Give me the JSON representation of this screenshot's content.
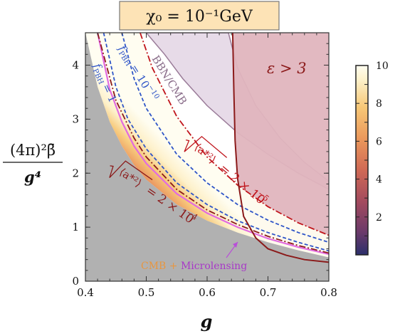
{
  "chart_data": {
    "type": "area",
    "title_text": "χ₀ = 10⁻¹GeV",
    "title": "",
    "xlabel": "g",
    "ylabel": "(4π)²β̄ / g⁴",
    "ylabel_num": "(4π)²β̄",
    "ylabel_den": "g⁴",
    "xlim": [
      0.4,
      0.8
    ],
    "ylim": [
      0,
      4.6
    ],
    "x_ticks": [
      0.4,
      0.5,
      0.6,
      0.7,
      0.8
    ],
    "x_tick_labels": [
      "0.4",
      "0.5",
      "0.6",
      "0.7",
      "0.8"
    ],
    "y_ticks": [
      0,
      1,
      2,
      3,
      4
    ],
    "y_tick_labels": [
      "0",
      "1",
      "2",
      "3",
      "4"
    ],
    "colorbar": {
      "range": [
        0,
        10
      ],
      "ticks": [
        2,
        4,
        6,
        8,
        10
      ],
      "tick_labels": [
        "2",
        "4",
        "6",
        "8",
        "10"
      ],
      "colormap": [
        "#2b2f6b",
        "#6b3a6a",
        "#a34a5e",
        "#d06a55",
        "#ec9a5c",
        "#f7c877",
        "#fdf0c8",
        "#fffdf0"
      ]
    },
    "regions": [
      {
        "id": "excluded-gray",
        "color": "#b1b1b1",
        "boundary": [
          [
            0.4,
            4.6
          ],
          [
            0.42,
            3.6
          ],
          [
            0.44,
            2.95
          ],
          [
            0.46,
            2.5
          ],
          [
            0.48,
            2.15
          ],
          [
            0.5,
            1.88
          ],
          [
            0.55,
            1.42
          ],
          [
            0.6,
            1.12
          ],
          [
            0.65,
            0.9
          ],
          [
            0.7,
            0.72
          ],
          [
            0.75,
            0.57
          ],
          [
            0.8,
            0.44
          ]
        ]
      },
      {
        "id": "bbn-cmb",
        "label": "BBN/CMB",
        "color": "#e7dbe8",
        "edge": "#9a7b98",
        "inner": [
          [
            0.5,
            4.6
          ],
          [
            0.53,
            4.2
          ],
          [
            0.56,
            3.75
          ],
          [
            0.6,
            3.25
          ],
          [
            0.65,
            2.75
          ],
          [
            0.7,
            2.35
          ],
          [
            0.75,
            2.0
          ],
          [
            0.8,
            1.7
          ]
        ],
        "outer": [
          [
            0.635,
            4.6
          ],
          [
            0.65,
            3.95
          ],
          [
            0.68,
            3.25
          ],
          [
            0.72,
            2.65
          ],
          [
            0.76,
            2.2
          ],
          [
            0.8,
            1.85
          ]
        ]
      },
      {
        "id": "epsilon",
        "label": "ε > 3",
        "color": "#e0b5be",
        "edge": "#8b1a1a",
        "boundary": [
          [
            0.642,
            4.6
          ],
          [
            0.644,
            3.5
          ],
          [
            0.646,
            2.6
          ],
          [
            0.65,
            1.9
          ],
          [
            0.66,
            1.2
          ],
          [
            0.68,
            0.8
          ],
          [
            0.7,
            0.6
          ],
          [
            0.73,
            0.48
          ],
          [
            0.76,
            0.4
          ],
          [
            0.8,
            0.35
          ]
        ]
      }
    ],
    "curves": [
      {
        "id": "cmb-microlensing",
        "label": "CMB + Microlensing",
        "color": "#e26ae0",
        "points": [
          [
            0.42,
            4.6
          ],
          [
            0.44,
            3.55
          ],
          [
            0.46,
            2.95
          ],
          [
            0.48,
            2.5
          ],
          [
            0.5,
            2.18
          ],
          [
            0.55,
            1.62
          ],
          [
            0.6,
            1.26
          ],
          [
            0.65,
            1.0
          ],
          [
            0.7,
            0.79
          ],
          [
            0.75,
            0.63
          ],
          [
            0.8,
            0.5
          ]
        ]
      },
      {
        "id": "fpbh-1",
        "label": "fPBH = 1",
        "color": "#2f55c8",
        "points": [
          [
            0.43,
            4.6
          ],
          [
            0.45,
            3.6
          ],
          [
            0.47,
            3.0
          ],
          [
            0.5,
            2.45
          ],
          [
            0.55,
            1.82
          ],
          [
            0.6,
            1.42
          ],
          [
            0.65,
            1.12
          ],
          [
            0.7,
            0.9
          ],
          [
            0.75,
            0.72
          ],
          [
            0.8,
            0.56
          ]
        ]
      },
      {
        "id": "fpbh-1e-10",
        "label": "fPBH = 10^-10",
        "color": "#2f55c8",
        "points": [
          [
            0.46,
            4.6
          ],
          [
            0.48,
            3.75
          ],
          [
            0.5,
            3.2
          ],
          [
            0.55,
            2.35
          ],
          [
            0.6,
            1.82
          ],
          [
            0.65,
            1.42
          ],
          [
            0.7,
            1.13
          ],
          [
            0.75,
            0.9
          ],
          [
            0.8,
            0.72
          ]
        ]
      },
      {
        "id": "a2-2e-4",
        "label": "√⟨a*²⟩ = 2 × 10^-4",
        "color": "#8b1a1a",
        "points": [
          [
            0.42,
            4.6
          ],
          [
            0.45,
            3.35
          ],
          [
            0.48,
            2.65
          ],
          [
            0.5,
            2.3
          ],
          [
            0.55,
            1.7
          ],
          [
            0.6,
            1.32
          ],
          [
            0.65,
            1.05
          ],
          [
            0.7,
            0.83
          ],
          [
            0.75,
            0.66
          ],
          [
            0.8,
            0.52
          ]
        ]
      },
      {
        "id": "a2-2e-5",
        "label": "√⟨a*²⟩ = 2 × 10^-5",
        "color": "#c0141b",
        "points": [
          [
            0.49,
            4.6
          ],
          [
            0.51,
            3.95
          ],
          [
            0.55,
            3.05
          ],
          [
            0.6,
            2.3
          ],
          [
            0.65,
            1.78
          ],
          [
            0.7,
            1.38
          ],
          [
            0.75,
            1.08
          ],
          [
            0.8,
            0.85
          ]
        ]
      }
    ],
    "annotations": {
      "bbn": "BBN/CMB",
      "epsilon": "ε > 3",
      "cmb_microlensing": "CMB + Microlensing",
      "fpbh_sym": "f",
      "fpbh_sub": "PBH",
      "fpbh1_val": "= 1",
      "fpbh10_val": "= 10",
      "fpbh10_exp": "−10",
      "a2_val": "= 2 × 10",
      "a2_exp_4": "−4",
      "a2_exp_5": "−5"
    },
    "grid": false,
    "legend": "none"
  }
}
